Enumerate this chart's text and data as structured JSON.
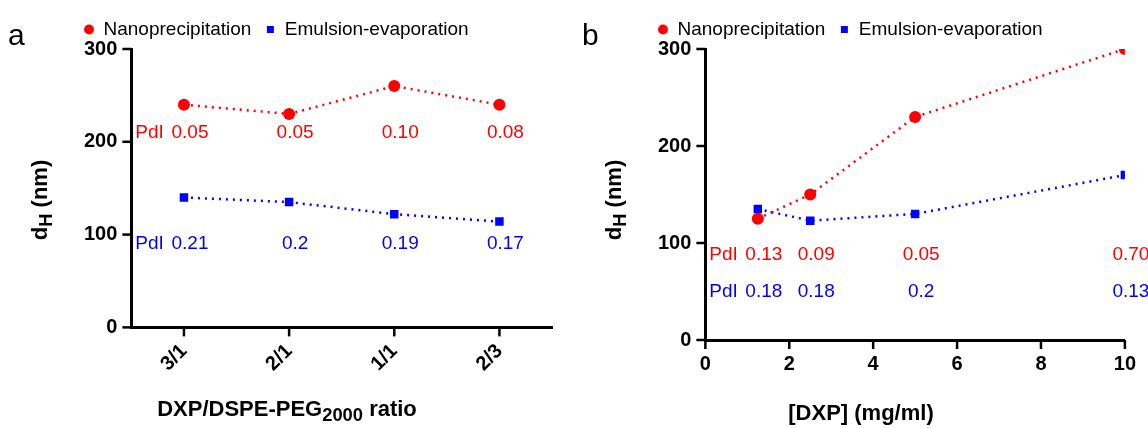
{
  "chart_data": [
    {
      "type": "line",
      "title": "a",
      "xlabel": "DXP/DSPE-PEG$_{2000}$ ratio",
      "ylabel": "d$_{H}$ (nm)",
      "categories": [
        "3/1",
        "2/1",
        "1/1",
        "2/3"
      ],
      "ylim": [
        0,
        300
      ],
      "yticks": [
        0,
        100,
        200,
        300
      ],
      "legend": "top",
      "line_style": "dotted",
      "annotations": [
        "PdI",
        "0.05",
        "0.05",
        "0.10",
        "0.08",
        "PdI",
        "0.21",
        "0.2",
        "0.19",
        "0.17"
      ],
      "series": [
        {
          "name": "Nanoprecipitation",
          "color": "#ff0000",
          "marker": "circle",
          "values": [
            240,
            230,
            260,
            240
          ]
        },
        {
          "name": "Emulsion-evaporation",
          "color": "#0000ff",
          "marker": "square",
          "values": [
            140,
            135,
            122,
            114
          ]
        }
      ]
    },
    {
      "type": "line",
      "title": "b",
      "xlabel": "[DXP] (mg/ml)",
      "ylabel": "d$_{H}$ (nm)",
      "x": [
        1.25,
        2.5,
        5,
        10
      ],
      "xlim": [
        0,
        10
      ],
      "xticks": [
        0,
        2,
        4,
        6,
        8,
        10
      ],
      "ylim": [
        0,
        300
      ],
      "yticks": [
        0,
        100,
        200,
        300
      ],
      "legend": "top",
      "line_style": "dotted",
      "annotations": [
        "PdI",
        "0.13",
        "0.09",
        "0.05",
        "0.70",
        "PdI",
        "0.18",
        "0.18",
        "0.2",
        "0.13"
      ],
      "series": [
        {
          "name": "Nanoprecipitation",
          "color": "#ff0000",
          "marker": "circle",
          "values": [
            125,
            150,
            230,
            300
          ]
        },
        {
          "name": "Emulsion-evaporation",
          "color": "#0000ff",
          "marker": "square",
          "values": [
            135,
            123,
            130,
            170
          ]
        }
      ]
    }
  ]
}
